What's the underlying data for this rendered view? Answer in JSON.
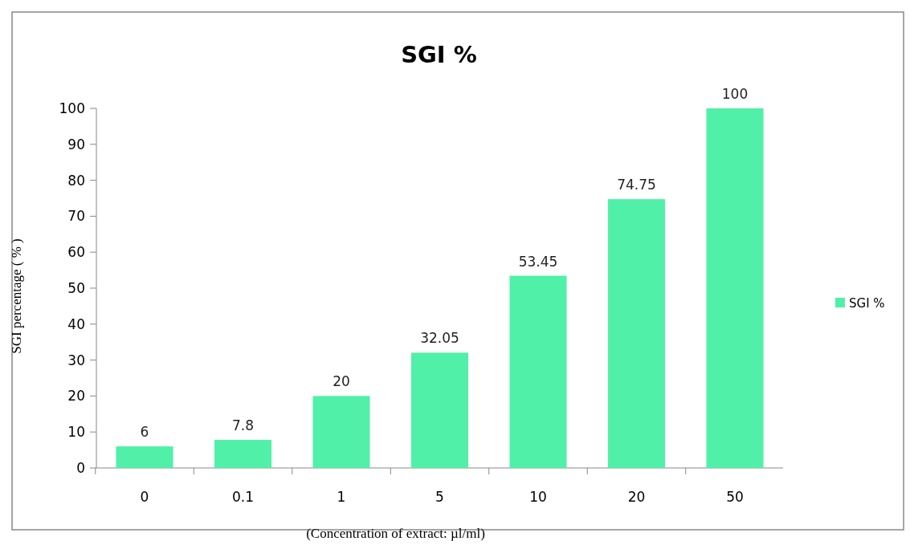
{
  "chart_data": {
    "type": "bar",
    "title": "SGI %",
    "xlabel": "(Concentration of extract:  µl/ml)",
    "ylabel": "SGI  percentage ( % )",
    "categories": [
      "0",
      "0.1",
      "1",
      "5",
      "10",
      "20",
      "50"
    ],
    "series": [
      {
        "name": "SGI %",
        "color": "#50f0a8",
        "values": [
          6,
          7.8,
          20,
          32.05,
          53.45,
          74.75,
          100
        ]
      }
    ],
    "data_labels": true,
    "ylim": [
      0,
      100
    ],
    "yticks": [
      0,
      10,
      20,
      30,
      40,
      50,
      60,
      70,
      80,
      90,
      100
    ],
    "grid": false,
    "legend": "right"
  }
}
